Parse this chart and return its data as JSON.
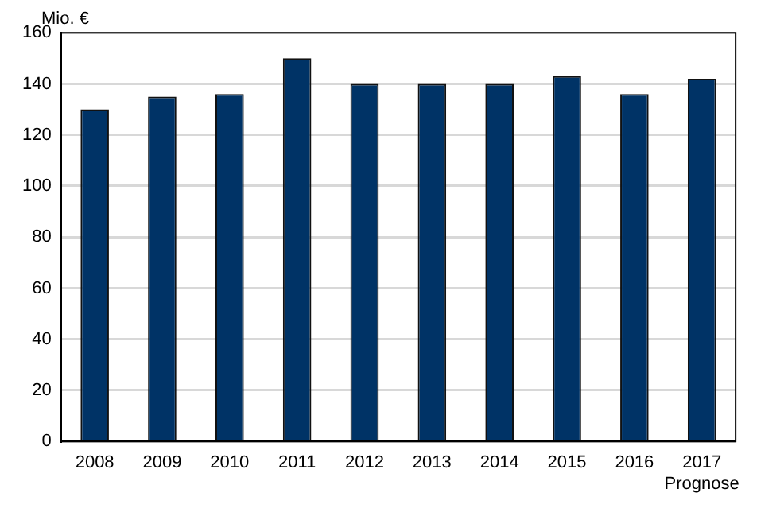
{
  "chart_data": {
    "type": "bar",
    "ylabel": "Mio. €",
    "categories": [
      "2008",
      "2009",
      "2010",
      "2011",
      "2012",
      "2013",
      "2014",
      "2015",
      "2016",
      "2017\nPrognose"
    ],
    "values": [
      130,
      135,
      136,
      150,
      140,
      140,
      140,
      143,
      136,
      142
    ],
    "color": "#003366",
    "ylim": [
      0,
      160
    ],
    "yticks": [
      0,
      20,
      40,
      60,
      80,
      100,
      120,
      140,
      160
    ],
    "grid": "y",
    "legend": false
  }
}
